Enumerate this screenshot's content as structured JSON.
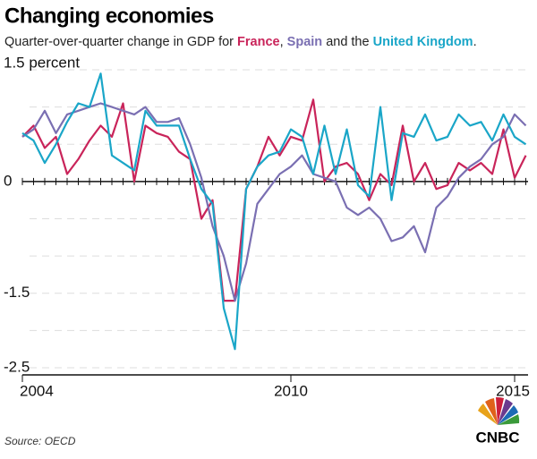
{
  "chart_data": {
    "type": "line",
    "title": "Changing economies",
    "subtitle": [
      "Quarter-over-quarter change in GDP for",
      ",",
      "and the",
      "."
    ],
    "source": "Source: OECD",
    "logo": "CNBC",
    "x": [
      2004,
      2004.25,
      2004.5,
      2004.75,
      2005,
      2005.25,
      2005.5,
      2005.75,
      2006,
      2006.25,
      2006.5,
      2006.75,
      2007,
      2007.25,
      2007.5,
      2007.75,
      2008,
      2008.25,
      2008.5,
      2008.75,
      2009,
      2009.25,
      2009.5,
      2009.75,
      2010,
      2010.25,
      2010.5,
      2010.75,
      2011,
      2011.25,
      2011.5,
      2011.75,
      2012,
      2012.25,
      2012.5,
      2012.75,
      2013,
      2013.25,
      2013.5,
      2013.75,
      2014,
      2014.25,
      2014.5,
      2014.75,
      2015,
      2015.25
    ],
    "series": [
      {
        "name": "France",
        "color": "#c9245a",
        "values": [
          0.6,
          0.75,
          0.45,
          0.6,
          0.1,
          0.3,
          0.55,
          0.75,
          0.6,
          1.05,
          0.0,
          0.75,
          0.65,
          0.6,
          0.4,
          0.3,
          -0.5,
          -0.25,
          -1.6,
          -1.6,
          -0.1,
          0.2,
          0.6,
          0.35,
          0.6,
          0.55,
          1.1,
          0.0,
          0.2,
          0.25,
          0.1,
          -0.25,
          0.1,
          -0.05,
          0.75,
          0.0,
          0.25,
          -0.1,
          -0.05,
          0.25,
          0.15,
          0.25,
          0.1,
          0.7,
          0.05,
          0.35
        ]
      },
      {
        "name": "Spain",
        "color": "#7a6fb2",
        "values": [
          0.6,
          0.7,
          0.95,
          0.65,
          0.9,
          0.95,
          1.0,
          1.05,
          1.0,
          0.95,
          0.9,
          1.0,
          0.8,
          0.8,
          0.85,
          0.5,
          0.05,
          -0.6,
          -1.0,
          -1.6,
          -1.1,
          -0.3,
          -0.1,
          0.1,
          0.2,
          0.35,
          0.1,
          0.05,
          0.0,
          -0.35,
          -0.45,
          -0.35,
          -0.5,
          -0.8,
          -0.75,
          -0.6,
          -0.95,
          -0.35,
          -0.2,
          0.05,
          0.2,
          0.3,
          0.5,
          0.6,
          0.9,
          0.75
        ]
      },
      {
        "name": "United Kingdom",
        "color": "#1aa6c8",
        "values": [
          0.65,
          0.55,
          0.25,
          0.5,
          0.8,
          1.05,
          1.0,
          1.45,
          0.35,
          0.25,
          0.15,
          0.95,
          0.75,
          0.75,
          0.75,
          0.3,
          -0.1,
          -0.3,
          -1.7,
          -2.25,
          -0.1,
          0.2,
          0.35,
          0.4,
          0.7,
          0.6,
          0.1,
          0.75,
          0.1,
          0.7,
          -0.05,
          -0.2,
          1.0,
          -0.25,
          0.65,
          0.6,
          0.9,
          0.55,
          0.6,
          0.9,
          0.75,
          0.8,
          0.55,
          0.9,
          0.6,
          0.5
        ]
      }
    ],
    "xlim": [
      2004,
      2015.3
    ],
    "xticks": [
      2004,
      2010,
      2015
    ],
    "ylim": [
      -2.5,
      1.5
    ],
    "yticks": [
      {
        "value": 1.5,
        "label": "1.5 percent"
      },
      0,
      -1.5,
      -2.5
    ],
    "minor_yticks": [
      1,
      0.5,
      -0.5,
      -1,
      -2
    ],
    "grid": true
  }
}
